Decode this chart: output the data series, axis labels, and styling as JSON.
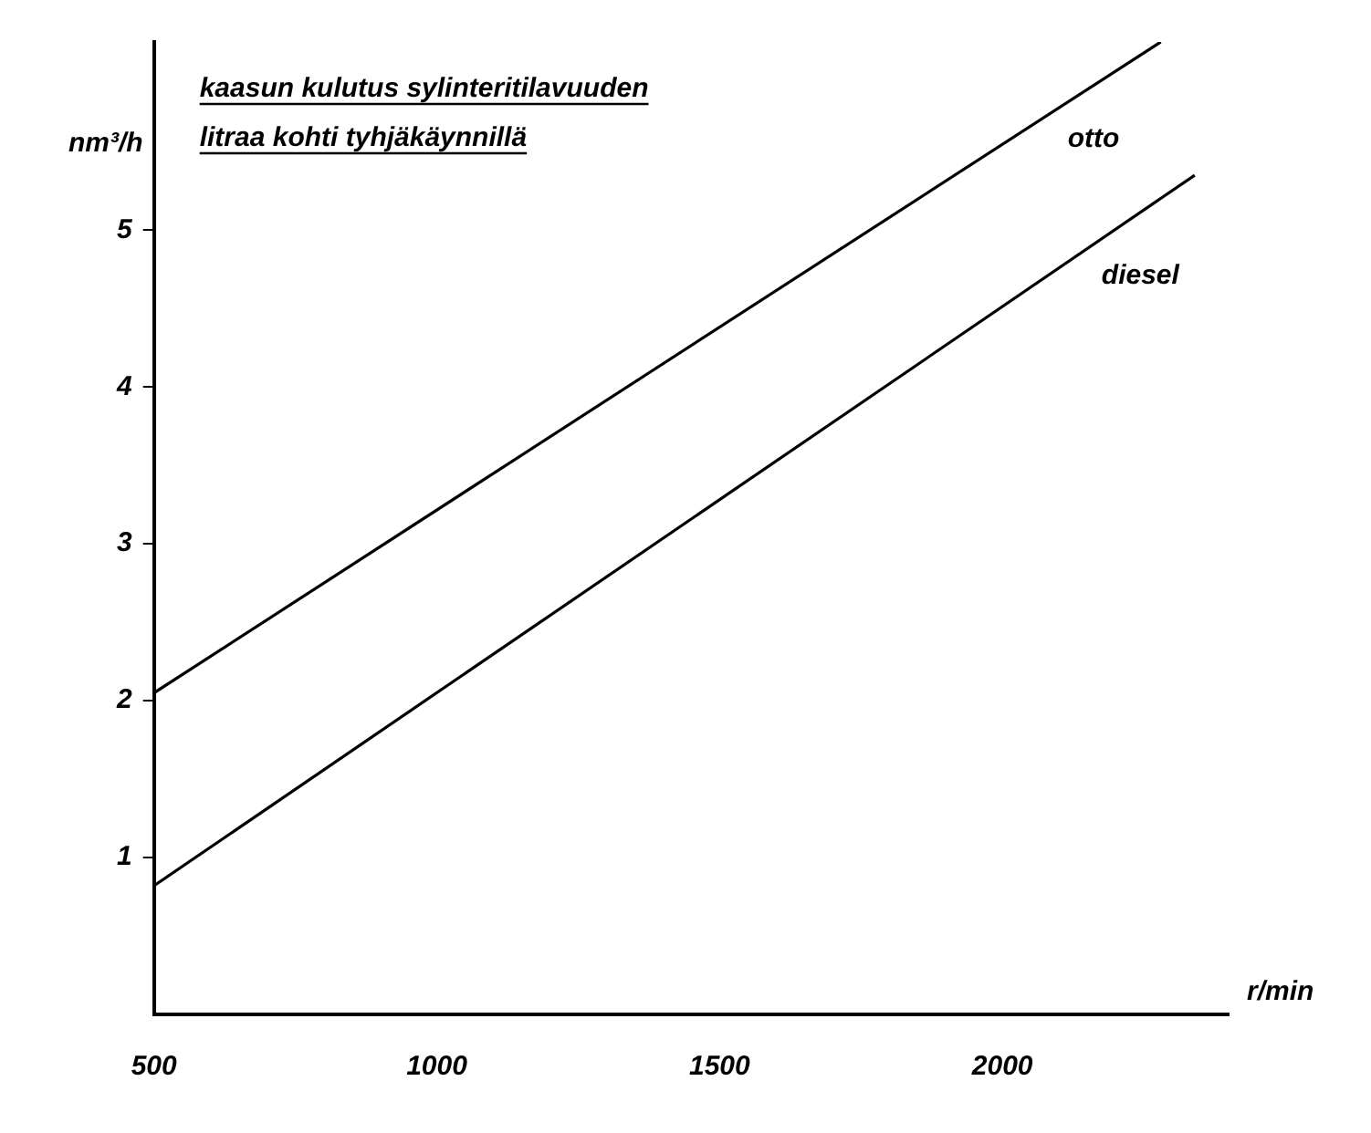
{
  "chart_data": {
    "type": "line",
    "title": "kaasun kulutus sylinteritilavuuden\nlitraa kohti tyhjäkäynnillä",
    "xlabel": "r/min",
    "ylabel": "nm³/h",
    "series": [
      {
        "name": "otto",
        "color": "#000000",
        "x": [
          500,
          2280
        ],
        "values": [
          2.05,
          6.2
        ]
      },
      {
        "name": "diesel",
        "color": "#000000",
        "x": [
          500,
          2340
        ],
        "values": [
          0.82,
          5.35
        ]
      }
    ],
    "xlim": [
      500,
      2400
    ],
    "xticks": [
      500,
      1000,
      1500,
      2000
    ],
    "ylim": [
      0,
      6.2
    ],
    "yticks": [
      1,
      2,
      3,
      4,
      5
    ],
    "grid": false,
    "legend": false,
    "marker": "none",
    "line_style": "solid"
  }
}
